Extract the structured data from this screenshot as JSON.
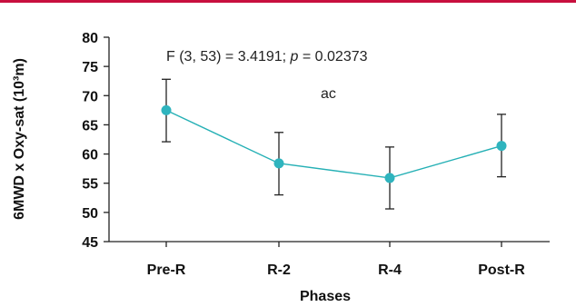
{
  "colors": {
    "top_bar": "#c8103e",
    "series_line": "#25b0b5",
    "marker": "#2fb4be",
    "axis": "#222222",
    "error_bar": "#222222"
  },
  "chart_data": {
    "type": "line",
    "categories": [
      "Pre-R",
      "R-2",
      "R-4",
      "Post-R"
    ],
    "series": [
      {
        "values": [
          67.5,
          58.4,
          55.9,
          61.4
        ],
        "error_upper": [
          72.8,
          63.7,
          61.2,
          66.8
        ],
        "error_lower": [
          62.1,
          53.0,
          50.6,
          56.1
        ]
      }
    ],
    "xlabel": "Phases",
    "ylabel": "6MWD x Oxy-sat (10³m)",
    "ylim": [
      45,
      80
    ],
    "yticks": [
      45,
      50,
      55,
      60,
      65,
      70,
      75,
      80
    ],
    "grid": false,
    "annotations": {
      "stat_prefix": "F (3, 53) = 3.4191; ",
      "stat_p": "p",
      "stat_suffix": " = 0.02373",
      "sig_letters": "ac"
    }
  }
}
